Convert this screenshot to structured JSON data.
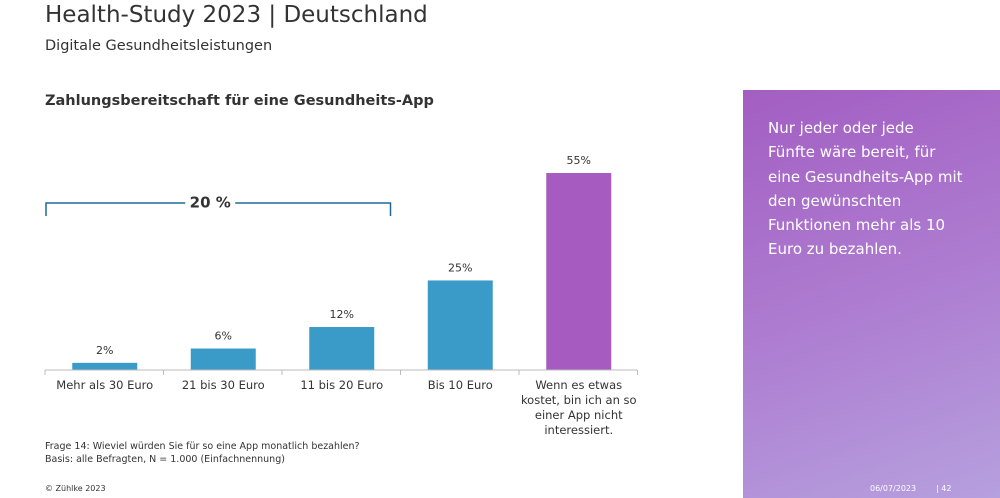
{
  "header": {
    "title": "Health-Study 2023 | Deutschland",
    "subtitle": "Digitale Gesundheitsleistungen"
  },
  "chart_data": {
    "type": "bar",
    "title": "Zahlungsbereitschaft für eine Gesundheits-App",
    "categories": [
      "Mehr als 30 Euro",
      "21 bis 30 Euro",
      "11 bis 20 Euro",
      "Bis 10 Euro",
      "Wenn es etwas kostet, bin ich an so einer App nicht interessiert."
    ],
    "values": [
      2,
      6,
      12,
      25,
      55
    ],
    "value_labels": [
      "2%",
      "6%",
      "12%",
      "25%",
      "55%"
    ],
    "colors": [
      "#3a9bc8",
      "#3a9bc8",
      "#3a9bc8",
      "#3a9bc8",
      "#a55bbf"
    ],
    "bracket": {
      "label": "20 %",
      "from": 0,
      "to": 2
    }
  },
  "footnote": [
    "Frage 14: Wieviel würden Sie für so eine App monatlich bezahlen?",
    "Basis: alle Befragten, N = 1.000 (Einfachnennung)"
  ],
  "panel_text": "Nur jeder oder jede Fünfte wäre bereit, für eine Gesundheits-App mit den gewünschten Funktionen mehr als 10 Euro zu bezahlen.",
  "footer": {
    "copyright": "© Zühlke  2023",
    "date": "06/07/2023",
    "page": "| 42"
  }
}
